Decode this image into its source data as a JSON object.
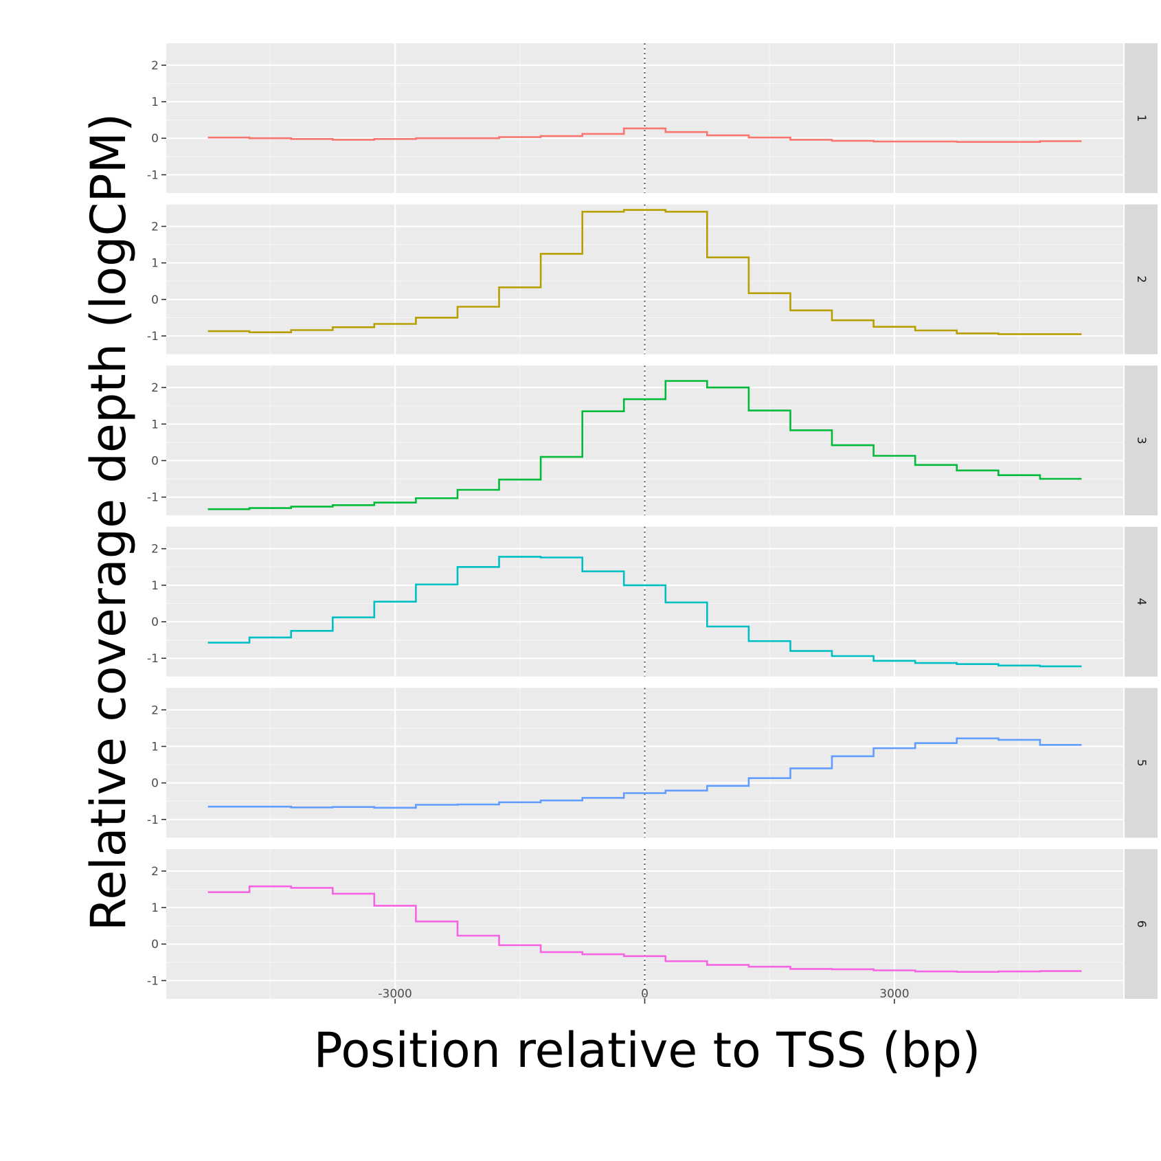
{
  "chart_data": {
    "type": "line",
    "subtype": "step",
    "facet_layout": "rows",
    "xlabel": "Position relative to TSS (bp)",
    "ylabel": "Relative coverage depth (logCPM)",
    "xlim": [
      -5750,
      5750
    ],
    "ylim": [
      -1.5,
      2.6
    ],
    "x_ticks": [
      -3000,
      0,
      3000
    ],
    "x_tick_labels": [
      "-3000",
      "0",
      "3000"
    ],
    "y_ticks": [
      -1,
      0,
      1,
      2
    ],
    "y_tick_labels": [
      "-1",
      "0",
      "1",
      "2"
    ],
    "reference_line": {
      "x": 0,
      "style": "dotted",
      "color": "#555555"
    },
    "grid": true,
    "bin_edges": [
      -5250,
      -4750,
      -4250,
      -3750,
      -3250,
      -2750,
      -2250,
      -1750,
      -1250,
      -750,
      -250,
      250,
      750,
      1250,
      1750,
      2250,
      2750,
      3250,
      3750,
      4250,
      4750,
      5250
    ],
    "series": [
      {
        "panel": "1",
        "color": "#F8766D",
        "values": [
          0.02,
          0.0,
          -0.02,
          -0.04,
          -0.02,
          0.0,
          0.0,
          0.03,
          0.06,
          0.12,
          0.27,
          0.17,
          0.08,
          0.02,
          -0.04,
          -0.07,
          -0.09,
          -0.09,
          -0.1,
          -0.1,
          -0.08
        ]
      },
      {
        "panel": "2",
        "color": "#B79F00",
        "values": [
          -0.87,
          -0.9,
          -0.84,
          -0.76,
          -0.67,
          -0.5,
          -0.2,
          0.33,
          1.25,
          2.4,
          2.45,
          2.4,
          1.15,
          0.17,
          -0.3,
          -0.57,
          -0.75,
          -0.85,
          -0.93,
          -0.95,
          -0.95
        ]
      },
      {
        "panel": "3",
        "color": "#00BA38",
        "values": [
          -1.33,
          -1.3,
          -1.26,
          -1.22,
          -1.15,
          -1.03,
          -0.8,
          -0.52,
          0.1,
          1.35,
          1.68,
          2.18,
          2.0,
          1.37,
          0.83,
          0.42,
          0.13,
          -0.12,
          -0.27,
          -0.4,
          -0.5
        ]
      },
      {
        "panel": "4",
        "color": "#00BFC4",
        "values": [
          -0.57,
          -0.43,
          -0.25,
          0.12,
          0.55,
          1.02,
          1.5,
          1.78,
          1.76,
          1.38,
          1.0,
          0.53,
          -0.13,
          -0.53,
          -0.8,
          -0.94,
          -1.07,
          -1.13,
          -1.16,
          -1.2,
          -1.22
        ]
      },
      {
        "panel": "5",
        "color": "#619CFF",
        "values": [
          -0.65,
          -0.65,
          -0.67,
          -0.66,
          -0.68,
          -0.6,
          -0.59,
          -0.53,
          -0.48,
          -0.41,
          -0.28,
          -0.21,
          -0.08,
          0.13,
          0.4,
          0.73,
          0.95,
          1.09,
          1.22,
          1.18,
          1.04
        ]
      },
      {
        "panel": "6",
        "color": "#F564E3",
        "values": [
          1.42,
          1.58,
          1.54,
          1.38,
          1.05,
          0.62,
          0.23,
          -0.03,
          -0.22,
          -0.28,
          -0.33,
          -0.47,
          -0.57,
          -0.62,
          -0.68,
          -0.69,
          -0.72,
          -0.75,
          -0.76,
          -0.75,
          -0.74
        ]
      }
    ]
  }
}
